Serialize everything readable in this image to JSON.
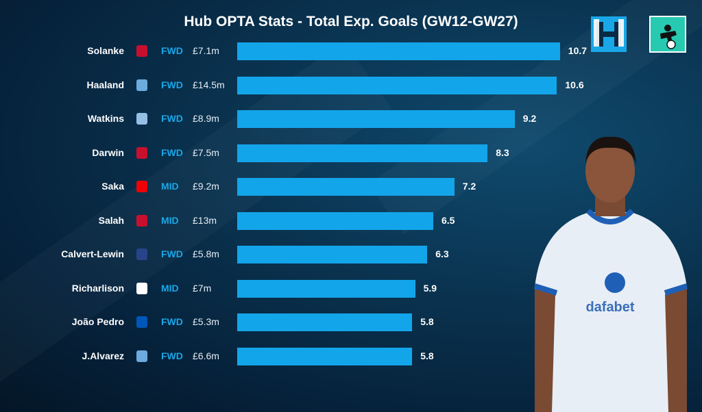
{
  "chart_data": {
    "type": "bar",
    "orientation": "horizontal",
    "title": "Hub OPTA Stats - Total Exp. Goals (GW12-GW27)",
    "xlabel": "",
    "ylabel": "",
    "xlim": [
      0,
      11
    ],
    "categories": [
      "Solanke",
      "Haaland",
      "Watkins",
      "Darwin",
      "Saka",
      "Salah",
      "Calvert-Lewin",
      "Richarlison",
      "João Pedro",
      "J.Alvarez"
    ],
    "positions": [
      "FWD",
      "FWD",
      "FWD",
      "FWD",
      "MID",
      "MID",
      "FWD",
      "MID",
      "FWD",
      "FWD"
    ],
    "prices": [
      "£7.1m",
      "£14.5m",
      "£8.9m",
      "£7.5m",
      "£9.2m",
      "£13m",
      "£5.8m",
      "£7m",
      "£5.3m",
      "£6.6m"
    ],
    "teams": [
      "bournemouth",
      "man-city",
      "aston-villa",
      "liverpool",
      "arsenal",
      "liverpool",
      "everton",
      "tottenham",
      "brighton",
      "man-city"
    ],
    "values": [
      10.7,
      10.6,
      9.2,
      8.3,
      7.2,
      6.5,
      6.3,
      5.9,
      5.8,
      5.8
    ],
    "value_labels": [
      "10.7",
      "10.6",
      "9.2",
      "8.3",
      "7.2",
      "6.5",
      "6.3",
      "5.9",
      "5.8",
      "5.8"
    ],
    "bar_color": "#13a5ea"
  },
  "team_colors": {
    "bournemouth": "#c8102e",
    "man-city": "#6cabdd",
    "aston-villa": "#95bfe5",
    "liverpool": "#c8102e",
    "arsenal": "#ef0107",
    "everton": "#274488",
    "tottenham": "#ffffff",
    "brighton": "#0057b8"
  },
  "logos": {
    "hub": "H",
    "fan": "football-fan-logo"
  }
}
